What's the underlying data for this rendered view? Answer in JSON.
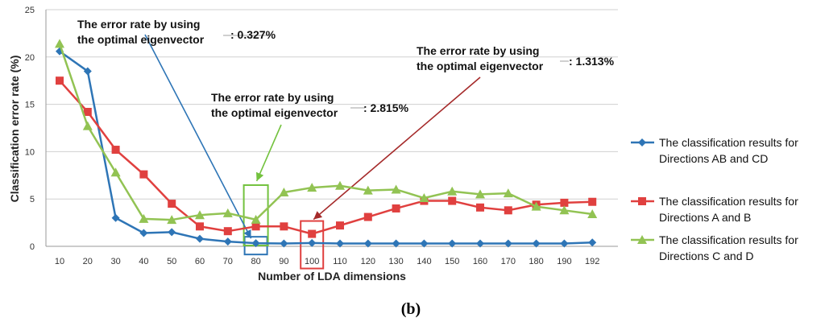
{
  "caption": "(b)",
  "chart_data": {
    "type": "line",
    "title": "",
    "xlabel": "Number of LDA dimensions",
    "ylabel": "Classification error rate (%)",
    "ylim": [
      0,
      25
    ],
    "yticks": [
      0,
      5,
      10,
      15,
      20,
      25
    ],
    "grid": true,
    "legend_position": "right",
    "categories": [
      "10",
      "20",
      "30",
      "40",
      "50",
      "60",
      "70",
      "80",
      "90",
      "100",
      "110",
      "120",
      "130",
      "140",
      "150",
      "160",
      "170",
      "180",
      "190",
      "192"
    ],
    "series": [
      {
        "name": "The classification results for Directions AB and CD",
        "legend_lines": [
          "The classification results for",
          "Directions AB and CD"
        ],
        "color": "#2e75b6",
        "marker": "diamond",
        "values": [
          20.6,
          18.5,
          3.0,
          1.4,
          1.5,
          0.8,
          0.5,
          0.327,
          0.3,
          0.35,
          0.3,
          0.3,
          0.3,
          0.3,
          0.3,
          0.3,
          0.3,
          0.3,
          0.3,
          0.4
        ]
      },
      {
        "name": "The classification results for Directions A and B",
        "legend_lines": [
          "The classification results for",
          "Directions A and B"
        ],
        "color": "#e0403f",
        "marker": "square",
        "values": [
          17.5,
          14.2,
          10.2,
          7.6,
          4.5,
          2.1,
          1.6,
          2.1,
          2.1,
          1.313,
          2.2,
          3.1,
          4.0,
          4.8,
          4.8,
          4.1,
          3.8,
          4.4,
          4.6,
          4.7
        ]
      },
      {
        "name": "The classification results for Directions C and D",
        "legend_lines": [
          "The classification results for",
          "Directions C and D"
        ],
        "color": "#92c353",
        "marker": "triangle",
        "values": [
          21.4,
          12.7,
          7.8,
          2.9,
          2.8,
          3.3,
          3.5,
          2.815,
          5.7,
          6.2,
          6.4,
          5.9,
          6.0,
          5.1,
          5.8,
          5.5,
          5.6,
          4.2,
          3.8,
          3.4
        ]
      }
    ],
    "annotations": [
      {
        "lines": [
          "The error rate by using",
          "the optimal eigenvector"
        ],
        "value_text": ": 0.327%",
        "color": "#2e75b6",
        "target_index": 7,
        "target_value": 0.327
      },
      {
        "lines": [
          "The error rate by using",
          "the optimal eigenvector"
        ],
        "value_text": ": 2.815%",
        "color": "#73c23e",
        "target_index": 7,
        "target_value": 2.815
      },
      {
        "lines": [
          "The error rate by using",
          "the optimal eigenvector"
        ],
        "value_text": ": 1.313%",
        "color": "#a52a2a",
        "target_index": 9,
        "target_value": 1.313
      }
    ]
  }
}
